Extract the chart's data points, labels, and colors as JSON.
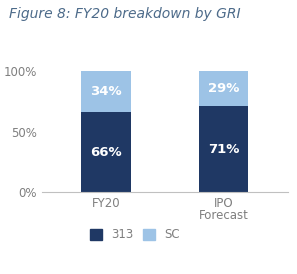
{
  "title": "Figure 8: FY20 breakdown by GRI",
  "categories": [
    "FY20",
    "IPO"
  ],
  "xlabel2": "Forecast",
  "series_313": [
    66,
    71
  ],
  "series_sc": [
    34,
    29
  ],
  "color_313": "#1f3864",
  "color_sc": "#9dc3e6",
  "ylim": [
    0,
    100
  ],
  "yticks": [
    0,
    50,
    100
  ],
  "ytick_labels": [
    "0%",
    "50%",
    "100%"
  ],
  "label_313": "313",
  "label_sc": "SC",
  "bar_width": 0.42,
  "title_fontsize": 10,
  "tick_fontsize": 8.5,
  "legend_fontsize": 8.5,
  "annotation_fontsize": 9.5,
  "title_color": "#4d6b8a",
  "tick_color": "#7f7f7f",
  "background_color": "#ffffff"
}
